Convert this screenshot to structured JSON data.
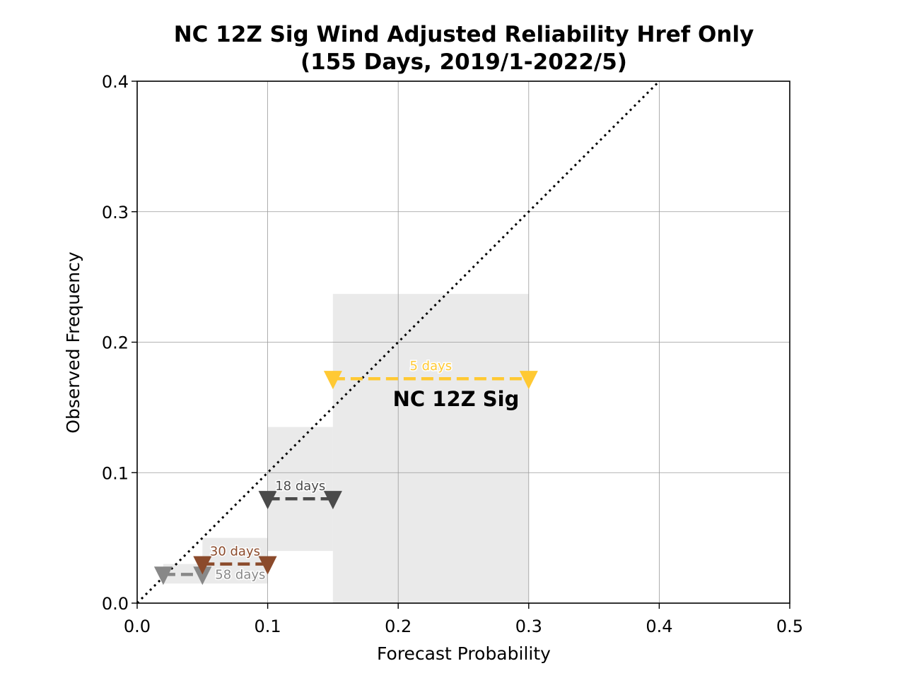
{
  "chart_data": {
    "type": "scatter",
    "title": "NC 12Z Sig Wind Adjusted Reliability Href Only",
    "subtitle": "(155 Days, 2019/1-2022/5)",
    "xlabel": "Forecast Probability",
    "ylabel": "Observed Frequency",
    "xlim": [
      0,
      0.5
    ],
    "ylim": [
      0,
      0.4
    ],
    "x_ticks": [
      "0.0",
      "0.1",
      "0.2",
      "0.3",
      "0.4",
      "0.5"
    ],
    "y_ticks": [
      "0.0",
      "0.1",
      "0.2",
      "0.3",
      "0.4"
    ],
    "grid": true,
    "diagonal": {
      "from": [
        0,
        0
      ],
      "to": [
        0.4,
        0.4
      ],
      "style": "dotted",
      "color": "#000000"
    },
    "series_label": "NC 12Z Sig",
    "bins": [
      {
        "x0": 0.02,
        "x1": 0.05,
        "y": 0.022,
        "ci": [
          0.015,
          0.03
        ],
        "label": "58 days",
        "color": "#888888"
      },
      {
        "x0": 0.05,
        "x1": 0.1,
        "y": 0.03,
        "ci": [
          0.015,
          0.05
        ],
        "label": "30 days",
        "color": "#8B4A2B"
      },
      {
        "x0": 0.1,
        "x1": 0.15,
        "y": 0.08,
        "ci": [
          0.04,
          0.135
        ],
        "label": "18 days",
        "color": "#4a4a4a"
      },
      {
        "x0": 0.15,
        "x1": 0.3,
        "y": 0.172,
        "ci": [
          0.0,
          0.237
        ],
        "label": "5 days",
        "color": "#FFC933"
      }
    ]
  }
}
